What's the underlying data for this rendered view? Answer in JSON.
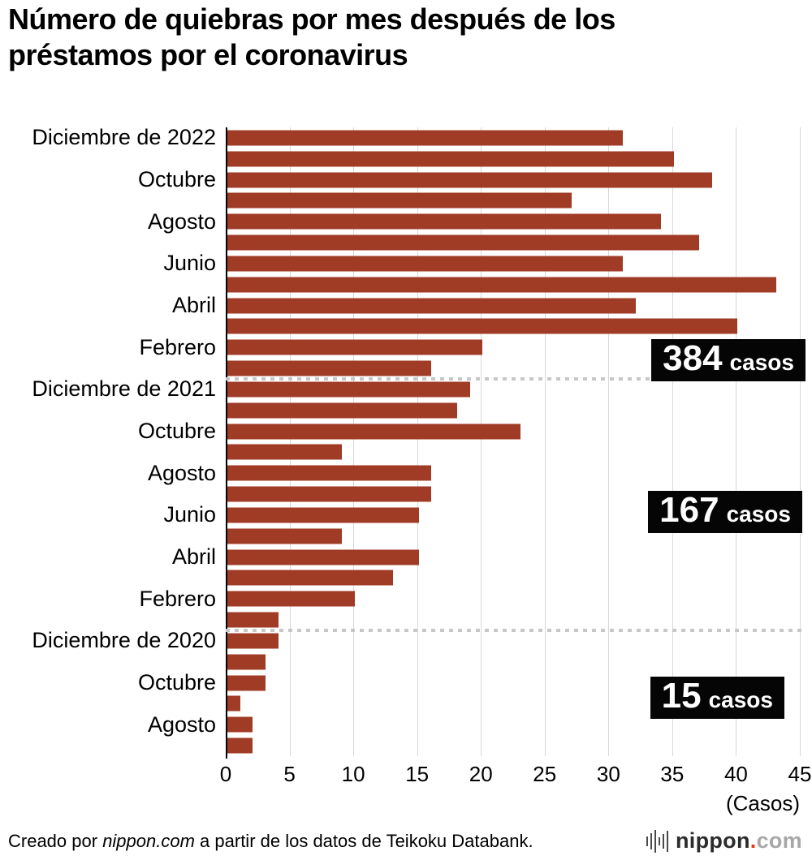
{
  "title": "Número de quiebras por mes después de los préstamos por el coronavirus",
  "chart_data": {
    "type": "bar",
    "orientation": "horizontal",
    "title": "Número de quiebras por mes después de los préstamos por el coronavirus",
    "bar_color": "#a03b26",
    "grid": "vertical",
    "legend": "none",
    "xlim": [
      0,
      45
    ],
    "xticks": [
      0,
      5,
      10,
      15,
      20,
      25,
      30,
      35,
      40,
      45
    ],
    "x_unit_label": "(Casos)",
    "categories": [
      "Diciembre de 2022",
      "",
      "Octubre",
      "",
      "Agosto",
      "",
      "Junio",
      "",
      "Abril",
      "",
      "Febrero",
      "",
      "Diciembre de 2021",
      "",
      "Octubre",
      "",
      "Agosto",
      "",
      "Junio",
      "",
      "Abril",
      "",
      "Febrero",
      "",
      "Diciembre de 2020",
      "",
      "Octubre",
      "",
      "Agosto",
      ""
    ],
    "values": [
      31,
      35,
      38,
      27,
      34,
      37,
      31,
      43,
      32,
      40,
      20,
      16,
      19,
      18,
      23,
      9,
      16,
      16,
      15,
      9,
      15,
      13,
      10,
      4,
      4,
      3,
      3,
      1,
      2,
      2
    ],
    "year_separators_after_row": [
      11,
      23
    ],
    "year_totals": [
      {
        "year": "2022",
        "value": "384",
        "unit": "casos"
      },
      {
        "year": "2021",
        "value": "167",
        "unit": "casos"
      },
      {
        "year": "2020",
        "value": "15",
        "unit": "casos"
      }
    ]
  },
  "footer": {
    "credit_prefix": "Creado por ",
    "credit_brand": "nippon.com",
    "credit_suffix": " a partir de los datos de Teikoku Databank.",
    "logo_name": "nippon",
    "logo_dot": ".",
    "logo_tld": "com"
  }
}
